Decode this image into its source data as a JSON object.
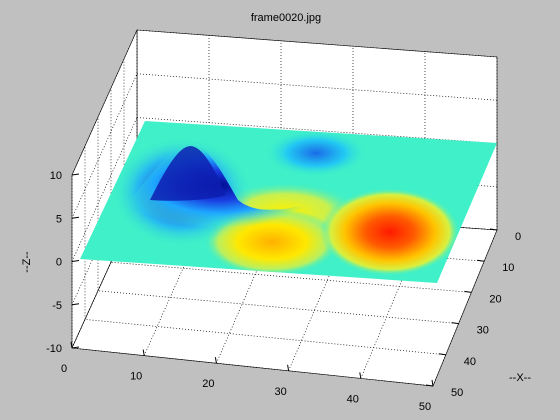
{
  "figure": {
    "title": "frame0020.jpg"
  },
  "colors": {
    "background": "#c0c0c0",
    "axes_face": "#ffffff",
    "colormap": [
      "#00008f",
      "#0000ff",
      "#00ffff",
      "#40e0b0",
      "#ffff00",
      "#ff8000",
      "#ff0000",
      "#800000"
    ]
  },
  "chart_data": {
    "type": "surface",
    "title": "frame0020.jpg",
    "xlabel": "--X--",
    "ylabel": "",
    "zlabel": "--Z--",
    "xlim": [
      0,
      50
    ],
    "ylim": [
      0,
      50
    ],
    "zlim": [
      -10,
      10
    ],
    "x_ticks": [
      "0",
      "10",
      "20",
      "30",
      "40",
      "50"
    ],
    "y_ticks": [
      "0",
      "10",
      "20",
      "30",
      "40",
      "50"
    ],
    "z_ticks": [
      "10",
      "5",
      "0",
      "-5",
      "-10"
    ],
    "grid": true,
    "colormap": "jet",
    "features": [
      {
        "name": "blue peak",
        "x": 16,
        "y": 14,
        "z": 10
      },
      {
        "name": "light blue bump",
        "x": 37,
        "y": 9,
        "z": 2.5
      },
      {
        "name": "red trough",
        "x": 42,
        "y": 35,
        "z": -7
      },
      {
        "name": "orange-yellow trough",
        "x": 27,
        "y": 39,
        "z": -4
      },
      {
        "name": "yellow saddle",
        "x": 25,
        "y": 25,
        "z": -2
      }
    ]
  }
}
